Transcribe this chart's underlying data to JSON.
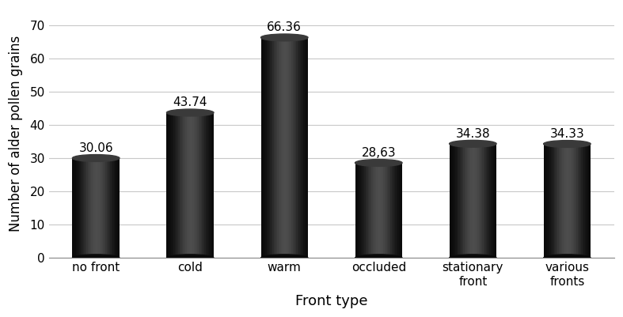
{
  "categories": [
    "no front",
    "cold",
    "warm",
    "occluded",
    "stationary\nfront",
    "various\nfronts"
  ],
  "values": [
    30.06,
    43.74,
    66.36,
    28.63,
    34.38,
    34.33
  ],
  "labels": [
    "30.06",
    "43.74",
    "66.36",
    "28,63",
    "34.38",
    "34.33"
  ],
  "xlabel": "Front type",
  "ylabel": "Number of alder pollen grains",
  "ylim": [
    0,
    75
  ],
  "yticks": [
    0,
    10,
    20,
    30,
    40,
    50,
    60,
    70
  ],
  "xlabel_fontsize": 13,
  "ylabel_fontsize": 12,
  "tick_fontsize": 11,
  "label_fontsize": 11,
  "bar_width": 0.5,
  "background_color": "#ffffff",
  "grid_color": "#c8c8c8",
  "bar_dark": 0.04,
  "bar_mid": 0.18,
  "bar_highlight": 0.3,
  "top_ellipse_color": "#444444",
  "n_strips": 40
}
